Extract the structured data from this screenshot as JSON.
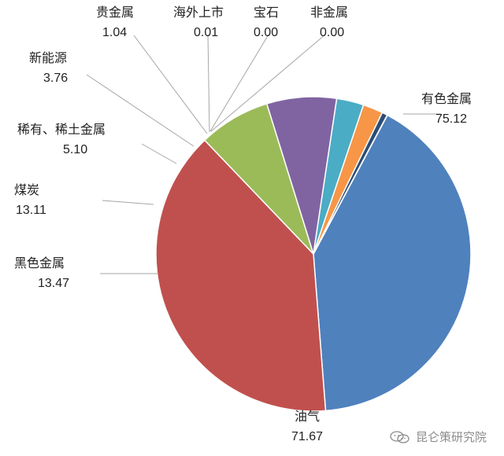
{
  "chart_data": {
    "type": "pie",
    "categories": [
      "有色金属",
      "油气",
      "黑色金属",
      "煤炭",
      "稀有、稀土金属",
      "新能源",
      "贵金属",
      "海外上市",
      "宝石",
      "非金属"
    ],
    "values": [
      75.12,
      71.67,
      13.47,
      13.11,
      5.1,
      3.76,
      1.04,
      0.01,
      0.0,
      0.0
    ],
    "value_labels": [
      "75.12",
      "71.67",
      "13.47",
      "13.11",
      "5.10",
      "3.76",
      "1.04",
      "0.01",
      "0.00",
      "0.00"
    ],
    "colors": [
      "#4f81bd",
      "#c0504d",
      "#9bbb59",
      "#8064a2",
      "#4bacc6",
      "#f79646",
      "#2c4d75",
      "#772c2a",
      "#5f7530",
      "#4d3b62"
    ]
  },
  "watermark": {
    "text": "昆仑策研究院",
    "icon": "wechat-icon"
  }
}
